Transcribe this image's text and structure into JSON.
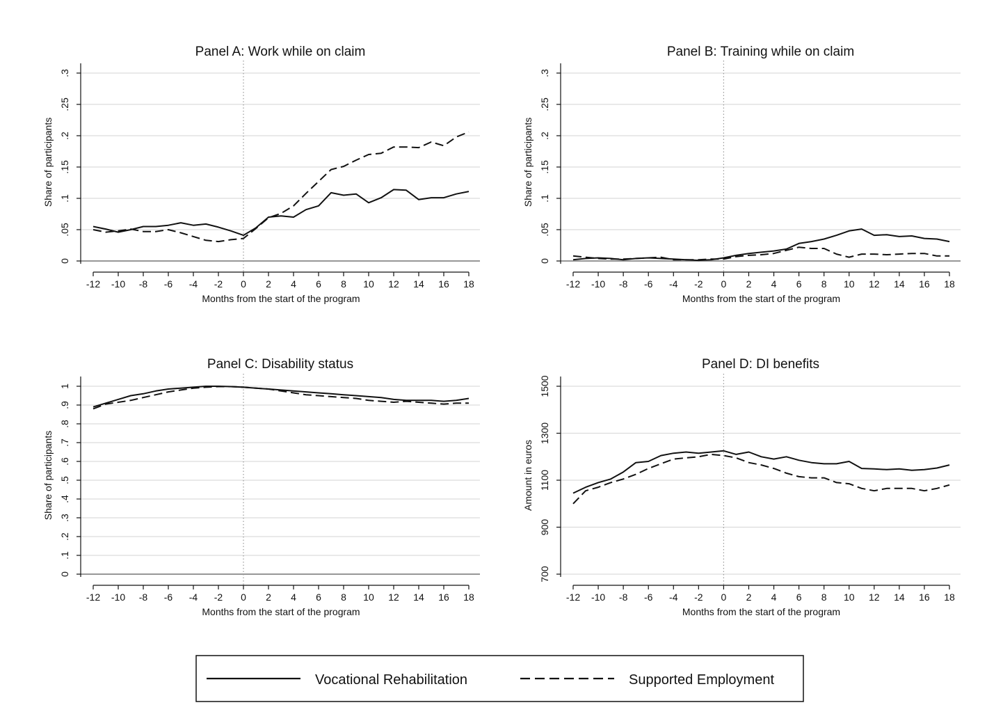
{
  "chart_data": [
    {
      "type": "line",
      "title": "Panel A: Work while on claim",
      "xlabel": "Months from the start of the program",
      "ylabel": "Share of participants",
      "xlim": [
        -12,
        18
      ],
      "ylim": [
        0,
        0.3
      ],
      "xticks": [
        -12,
        -10,
        -8,
        -6,
        -4,
        -2,
        0,
        2,
        4,
        6,
        8,
        10,
        12,
        14,
        16,
        18
      ],
      "xtick_labels": [
        "-12",
        "-10",
        "-8",
        "-6",
        "-4",
        "-2",
        "0",
        "2",
        "4",
        "6",
        "8",
        "10",
        "12",
        "14",
        "16",
        "18"
      ],
      "yticks": [
        0,
        0.05,
        0.1,
        0.15,
        0.2,
        0.25,
        0.3
      ],
      "ytick_labels": [
        "0",
        ".05",
        ".1",
        ".15",
        ".2",
        ".25",
        ".3"
      ],
      "grid": true,
      "vline_x": 0,
      "x": [
        -12,
        -11,
        -10,
        -9,
        -8,
        -7,
        -6,
        -5,
        -4,
        -3,
        -2,
        -1,
        0,
        1,
        2,
        3,
        4,
        5,
        6,
        7,
        8,
        9,
        10,
        11,
        12,
        13,
        14,
        15,
        16,
        17,
        18
      ],
      "series": [
        {
          "name": "Vocational Rehabilitation",
          "style": "solid",
          "values": [
            0.055,
            0.051,
            0.046,
            0.05,
            0.055,
            0.055,
            0.057,
            0.061,
            0.057,
            0.059,
            0.054,
            0.048,
            0.041,
            0.053,
            0.07,
            0.072,
            0.07,
            0.082,
            0.088,
            0.109,
            0.105,
            0.107,
            0.093,
            0.101,
            0.114,
            0.113,
            0.098,
            0.101,
            0.101,
            0.107,
            0.111
          ]
        },
        {
          "name": "Supported Employment",
          "style": "dashed",
          "values": [
            0.05,
            0.046,
            0.048,
            0.051,
            0.047,
            0.047,
            0.05,
            0.045,
            0.039,
            0.033,
            0.031,
            0.034,
            0.036,
            0.052,
            0.069,
            0.076,
            0.088,
            0.108,
            0.127,
            0.146,
            0.151,
            0.161,
            0.17,
            0.172,
            0.182,
            0.182,
            0.181,
            0.19,
            0.184,
            0.198,
            0.206
          ]
        }
      ]
    },
    {
      "type": "line",
      "title": "Panel B: Training while on claim",
      "xlabel": "Months from the start of the program",
      "ylabel": "Share of participants",
      "xlim": [
        -12,
        18
      ],
      "ylim": [
        0,
        0.3
      ],
      "xticks": [
        -12,
        -10,
        -8,
        -6,
        -4,
        -2,
        0,
        2,
        4,
        6,
        8,
        10,
        12,
        14,
        16,
        18
      ],
      "xtick_labels": [
        "-12",
        "-10",
        "-8",
        "-6",
        "-4",
        "-2",
        "0",
        "2",
        "4",
        "6",
        "8",
        "10",
        "12",
        "14",
        "16",
        "18"
      ],
      "yticks": [
        0,
        0.05,
        0.1,
        0.15,
        0.2,
        0.25,
        0.3
      ],
      "ytick_labels": [
        "0",
        ".05",
        ".1",
        ".15",
        ".2",
        ".25",
        ".3"
      ],
      "grid": true,
      "vline_x": 0,
      "x": [
        -12,
        -11,
        -10,
        -9,
        -8,
        -7,
        -6,
        -5,
        -4,
        -3,
        -2,
        -1,
        0,
        1,
        2,
        3,
        4,
        5,
        6,
        7,
        8,
        9,
        10,
        11,
        12,
        13,
        14,
        15,
        16,
        17,
        18
      ],
      "series": [
        {
          "name": "Vocational Rehabilitation",
          "style": "solid",
          "values": [
            0.002,
            0.004,
            0.005,
            0.004,
            0.002,
            0.004,
            0.005,
            0.004,
            0.003,
            0.002,
            0.001,
            0.002,
            0.005,
            0.009,
            0.012,
            0.014,
            0.016,
            0.019,
            0.028,
            0.031,
            0.035,
            0.041,
            0.048,
            0.051,
            0.041,
            0.042,
            0.039,
            0.04,
            0.036,
            0.035,
            0.031
          ]
        },
        {
          "name": "Supported Employment",
          "style": "dashed",
          "values": [
            0.008,
            0.006,
            0.004,
            0.003,
            0.003,
            0.004,
            0.005,
            0.006,
            0.002,
            0.002,
            0.002,
            0.003,
            0.003,
            0.007,
            0.009,
            0.01,
            0.012,
            0.017,
            0.022,
            0.02,
            0.02,
            0.011,
            0.006,
            0.011,
            0.011,
            0.01,
            0.011,
            0.012,
            0.012,
            0.008,
            0.008
          ]
        }
      ]
    },
    {
      "type": "line",
      "title": "Panel C: Disability status",
      "xlabel": "Months from the start of the program",
      "ylabel": "Share of participants",
      "xlim": [
        -12,
        18
      ],
      "ylim": [
        0,
        1
      ],
      "xticks": [
        -12,
        -10,
        -8,
        -6,
        -4,
        -2,
        0,
        2,
        4,
        6,
        8,
        10,
        12,
        14,
        16,
        18
      ],
      "xtick_labels": [
        "-12",
        "-10",
        "-8",
        "-6",
        "-4",
        "-2",
        "0",
        "2",
        "4",
        "6",
        "8",
        "10",
        "12",
        "14",
        "16",
        "18"
      ],
      "yticks": [
        0,
        0.1,
        0.2,
        0.3,
        0.4,
        0.5,
        0.6,
        0.7,
        0.8,
        0.9,
        1
      ],
      "ytick_labels": [
        "0",
        ".1",
        ".2",
        ".3",
        ".4",
        ".5",
        ".6",
        ".7",
        ".8",
        ".9",
        "1"
      ],
      "grid": true,
      "vline_x": 0,
      "x": [
        -12,
        -11,
        -10,
        -9,
        -8,
        -7,
        -6,
        -5,
        -4,
        -3,
        -2,
        -1,
        0,
        1,
        2,
        3,
        4,
        5,
        6,
        7,
        8,
        9,
        10,
        11,
        12,
        13,
        14,
        15,
        16,
        17,
        18
      ],
      "series": [
        {
          "name": "Vocational Rehabilitation",
          "style": "solid",
          "values": [
            0.89,
            0.91,
            0.93,
            0.95,
            0.96,
            0.975,
            0.985,
            0.99,
            0.995,
            1.0,
            1.0,
            0.998,
            0.995,
            0.99,
            0.985,
            0.98,
            0.975,
            0.97,
            0.965,
            0.96,
            0.955,
            0.95,
            0.945,
            0.94,
            0.93,
            0.925,
            0.925,
            0.925,
            0.92,
            0.925,
            0.935
          ]
        },
        {
          "name": "Supported Employment",
          "style": "dashed",
          "values": [
            0.88,
            0.905,
            0.915,
            0.925,
            0.94,
            0.955,
            0.97,
            0.98,
            0.99,
            0.995,
            0.998,
            0.998,
            0.995,
            0.99,
            0.985,
            0.975,
            0.965,
            0.955,
            0.95,
            0.945,
            0.94,
            0.935,
            0.925,
            0.92,
            0.915,
            0.92,
            0.915,
            0.91,
            0.905,
            0.91,
            0.91
          ]
        }
      ]
    },
    {
      "type": "line",
      "title": "Panel D: DI benefits",
      "xlabel": "Months from the start of the program",
      "ylabel": "Amount in euros",
      "xlim": [
        -12,
        18
      ],
      "ylim": [
        700,
        1500
      ],
      "xticks": [
        -12,
        -10,
        -8,
        -6,
        -4,
        -2,
        0,
        2,
        4,
        6,
        8,
        10,
        12,
        14,
        16,
        18
      ],
      "xtick_labels": [
        "-12",
        "-10",
        "-8",
        "-6",
        "-4",
        "-2",
        "0",
        "2",
        "4",
        "6",
        "8",
        "10",
        "12",
        "14",
        "16",
        "18"
      ],
      "yticks": [
        700,
        900,
        1100,
        1300,
        1500
      ],
      "ytick_labels": [
        "700",
        "900",
        "1100",
        "1300",
        "1500"
      ],
      "grid": true,
      "vline_x": 0,
      "x": [
        -12,
        -11,
        -10,
        -9,
        -8,
        -7,
        -6,
        -5,
        -4,
        -3,
        -2,
        -1,
        0,
        1,
        2,
        3,
        4,
        5,
        6,
        7,
        8,
        9,
        10,
        11,
        12,
        13,
        14,
        15,
        16,
        17,
        18
      ],
      "series": [
        {
          "name": "Vocational Rehabilitation",
          "style": "solid",
          "values": [
            1045,
            1070,
            1090,
            1105,
            1135,
            1175,
            1180,
            1205,
            1215,
            1220,
            1215,
            1220,
            1225,
            1210,
            1220,
            1200,
            1190,
            1200,
            1185,
            1175,
            1170,
            1170,
            1180,
            1150,
            1148,
            1145,
            1148,
            1142,
            1145,
            1152,
            1165
          ]
        },
        {
          "name": "Supported Employment",
          "style": "dashed",
          "values": [
            1000,
            1055,
            1070,
            1090,
            1105,
            1125,
            1150,
            1170,
            1190,
            1195,
            1200,
            1210,
            1205,
            1195,
            1175,
            1165,
            1150,
            1130,
            1115,
            1110,
            1110,
            1090,
            1085,
            1065,
            1055,
            1065,
            1065,
            1065,
            1055,
            1065,
            1080
          ]
        }
      ]
    }
  ],
  "legend": {
    "position": "bottom",
    "items": [
      {
        "label": "Vocational Rehabilitation",
        "style": "solid"
      },
      {
        "label": "Supported Employment",
        "style": "dashed"
      }
    ]
  },
  "colors": {
    "line": "#111111",
    "grid": "#dcdcdc",
    "zero_line": "#888888",
    "vline": "#999999"
  }
}
